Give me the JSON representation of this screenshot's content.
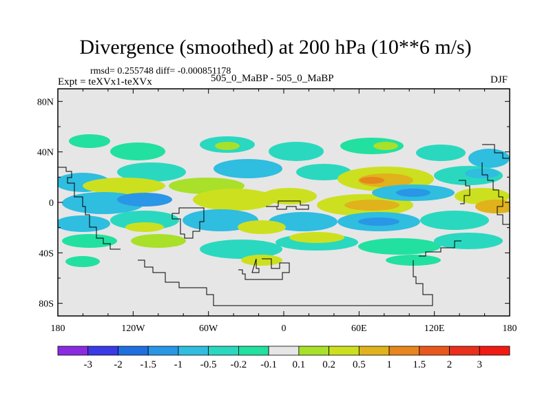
{
  "chart_data": {
    "type": "heatmap",
    "title": "Divergence (smoothed) at 200 hPa (10**6 m/s)",
    "stats": "rmsd= 0.255748  diff= -0.000851178",
    "experiment": "Expt = teXVx1-teXVx",
    "cases": "505_0_MaBP - 505_0_MaBP",
    "season": "DJF",
    "x_ticks": [
      "180",
      "120W",
      "60W",
      "0",
      "60E",
      "120E",
      "180"
    ],
    "x_tick_values": [
      -180,
      -120,
      -60,
      0,
      60,
      120,
      180
    ],
    "y_ticks": [
      "80N",
      "40N",
      "0",
      "40S",
      "80S"
    ],
    "y_tick_values": [
      80,
      40,
      0,
      -40,
      -80
    ],
    "xlim": [
      -180,
      180
    ],
    "ylim": [
      -90,
      90
    ],
    "colorbar": {
      "labels": [
        "-3",
        "-2",
        "-1.5",
        "-1",
        "-0.5",
        "-0.2",
        "-0.1",
        "0.1",
        "0.2",
        "0.5",
        "1",
        "1.5",
        "2",
        "3"
      ],
      "colors": [
        "#8a2be2",
        "#3a3ae6",
        "#1f6fe0",
        "#2a96e6",
        "#2fbde0",
        "#2ad8c0",
        "#22e0a0",
        "#e6e6e6",
        "#a8e02a",
        "#cce020",
        "#e0b21c",
        "#e6861c",
        "#e8581c",
        "#e8301c",
        "#f01a14"
      ]
    },
    "contour_levels": [
      -3,
      -2,
      -1.5,
      -1,
      -0.5,
      -0.2,
      -0.1,
      0.1,
      0.2,
      0.5,
      1,
      1.5,
      2,
      3
    ]
  }
}
